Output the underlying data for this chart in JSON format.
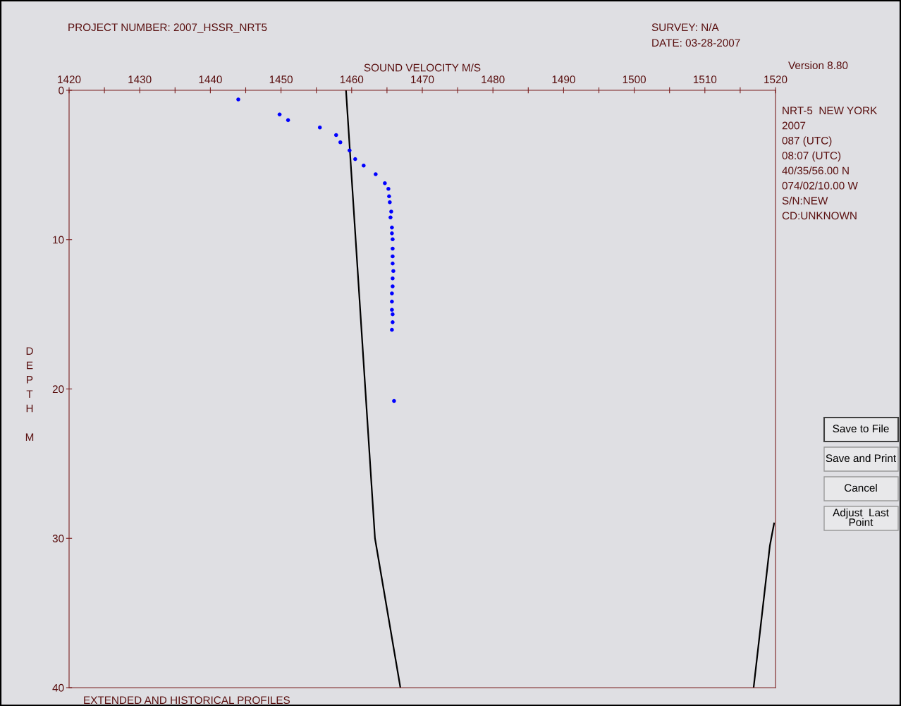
{
  "chart_data": {
    "type": "scatter",
    "xlabel": "SOUND VELOCITY M/S",
    "ylabel": "DEPTH M",
    "xlim": [
      1420,
      1520
    ],
    "ylim": [
      40,
      0
    ],
    "xticks": [
      1420,
      {
        "value": 1425,
        "label": null
      },
      1430,
      {
        "value": 1435,
        "label": null
      },
      1440,
      {
        "value": 1445,
        "label": null
      },
      1450,
      {
        "value": 1455,
        "label": null
      },
      1460,
      {
        "value": 1465,
        "label": null
      },
      1470,
      {
        "value": 1475,
        "label": null
      },
      1480,
      {
        "value": 1485,
        "label": null
      },
      1490,
      {
        "value": 1495,
        "label": null
      },
      1500,
      {
        "value": 1505,
        "label": null
      },
      1510,
      {
        "value": 1515,
        "label": null
      },
      1520
    ],
    "yticks": [
      0,
      10,
      20,
      30,
      40
    ],
    "grid": false,
    "legend": false,
    "series": [
      {
        "color": "#0000ff",
        "marker": "circle",
        "x": [
          1443.95,
          1449.8,
          1451.0,
          1455.5,
          1457.8,
          1458.4,
          1459.7,
          1460.5,
          1461.7,
          1463.4,
          1464.7,
          1465.2,
          1465.3,
          1465.4,
          1465.6,
          1465.5,
          1465.7,
          1465.7,
          1465.8,
          1465.8,
          1465.8,
          1465.8,
          1465.9,
          1465.8,
          1465.8,
          1465.7,
          1465.7,
          1465.7,
          1465.8,
          1465.8,
          1465.7,
          1466.0
        ],
        "values": [
          0.61,
          1.62,
          2.0,
          2.49,
          3.0,
          3.48,
          4.03,
          4.61,
          5.04,
          5.62,
          6.22,
          6.6,
          7.1,
          7.5,
          8.12,
          8.51,
          9.19,
          9.58,
          9.98,
          10.6,
          11.12,
          11.6,
          12.1,
          12.6,
          13.13,
          13.6,
          14.15,
          14.7,
          15.0,
          15.53,
          16.04,
          20.8
        ]
      },
      {
        "type": "line",
        "color": "#000000",
        "line_style": "solid",
        "x": [
          1459.2,
          1463.3,
          1466.9
        ],
        "values": [
          0,
          30,
          40
        ]
      },
      {
        "type": "line",
        "color": "#000000",
        "line_style": "solid",
        "x": [
          1519.8,
          1519.4,
          1519.2,
          1516.9
        ],
        "values": [
          29.0,
          30,
          30.5,
          40
        ]
      }
    ],
    "annotations": [
      "PROJECT NUMBER: 2007_HSSR_NRT5",
      "SURVEY: N/A",
      "DATE: 03-28-2007",
      "Version 8.80",
      "NRT-5  NEW YORK",
      "2007",
      "087 (UTC)",
      "08:07 (UTC)",
      "40/35/56.00 N",
      "074/02/10.00 W",
      "S/N:NEW",
      "CD:UNKNOWN",
      "EXTENDED AND HISTORICAL PROFILES",
      "Save to File",
      "Save and Print",
      "Cancel",
      "Adjust  Last\nPoint"
    ]
  }
}
